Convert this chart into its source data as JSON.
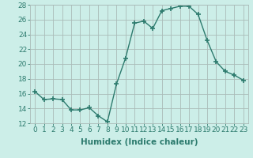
{
  "x": [
    0,
    1,
    2,
    3,
    4,
    5,
    6,
    7,
    8,
    9,
    10,
    11,
    12,
    13,
    14,
    15,
    16,
    17,
    18,
    19,
    20,
    21,
    22,
    23
  ],
  "y": [
    16.3,
    15.2,
    15.3,
    15.2,
    13.8,
    13.8,
    14.1,
    13.0,
    12.2,
    17.3,
    20.8,
    25.5,
    25.8,
    24.8,
    27.2,
    27.5,
    27.8,
    27.8,
    26.7,
    23.2,
    20.3,
    19.0,
    18.5,
    17.8
  ],
  "line_color": "#2d7b6e",
  "marker": "+",
  "markersize": 4,
  "markeredgewidth": 1.2,
  "bg_color": "#cceee8",
  "grid_color": "#aabbb8",
  "xlabel": "Humidex (Indice chaleur)",
  "ylim": [
    12,
    28
  ],
  "xlim": [
    -0.5,
    23.5
  ],
  "yticks": [
    12,
    14,
    16,
    18,
    20,
    22,
    24,
    26,
    28
  ],
  "xticks": [
    0,
    1,
    2,
    3,
    4,
    5,
    6,
    7,
    8,
    9,
    10,
    11,
    12,
    13,
    14,
    15,
    16,
    17,
    18,
    19,
    20,
    21,
    22,
    23
  ],
  "xlabel_fontsize": 7.5,
  "tick_fontsize": 6.5,
  "line_width": 1.0
}
